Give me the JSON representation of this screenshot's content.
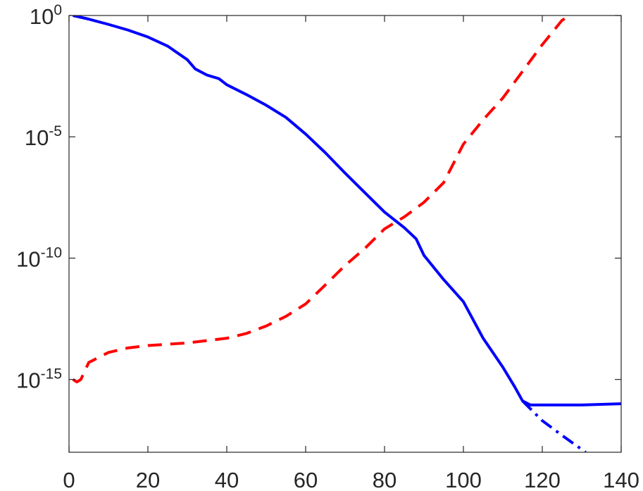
{
  "chart_data": {
    "type": "line",
    "title": "",
    "xlabel": "",
    "ylabel": "",
    "xlim": [
      0,
      140
    ],
    "ylim_log10": [
      -18,
      0
    ],
    "yscale": "log",
    "grid": false,
    "x_ticks": [
      0,
      20,
      40,
      60,
      80,
      100,
      120,
      140
    ],
    "x_tick_labels": [
      "0",
      "20",
      "40",
      "60",
      "80",
      "100",
      "120",
      "140"
    ],
    "y_ticks_log10": [
      0,
      -5,
      -10,
      -15
    ],
    "y_tick_labels": [
      {
        "base": "10",
        "exp": "0"
      },
      {
        "base": "10",
        "exp": "-5"
      },
      {
        "base": "10",
        "exp": "-10"
      },
      {
        "base": "10",
        "exp": "-15"
      }
    ],
    "series": [
      {
        "color": "#0000ff",
        "style": "solid",
        "points": [
          [
            1,
            1.0
          ],
          [
            5,
            0.71
          ],
          [
            10,
            0.43
          ],
          [
            15,
            0.25
          ],
          [
            20,
            0.13
          ],
          [
            25,
            0.055
          ],
          [
            30,
            0.015
          ],
          [
            32,
            0.0063
          ],
          [
            35,
            0.0035
          ],
          [
            38,
            0.0025
          ],
          [
            40,
            0.0014
          ],
          [
            45,
            0.00055
          ],
          [
            50,
            0.0002
          ],
          [
            55,
            6.3e-05
          ],
          [
            60,
            1.3e-05
          ],
          [
            65,
            2.2e-06
          ],
          [
            70,
            3.2e-07
          ],
          [
            75,
            5e-08
          ],
          [
            80,
            7.9e-09
          ],
          [
            85,
            1.8e-09
          ],
          [
            88,
            6.3e-10
          ],
          [
            90,
            1.3e-10
          ],
          [
            95,
            1.3e-11
          ],
          [
            100,
            1.6e-12
          ],
          [
            105,
            5e-14
          ],
          [
            110,
            3.2e-15
          ],
          [
            113,
            5e-16
          ],
          [
            115,
            1.3e-16
          ],
          [
            117,
            8.9e-17
          ],
          [
            120,
            8.9e-17
          ],
          [
            130,
            8.9e-17
          ],
          [
            140,
            1e-16
          ]
        ]
      },
      {
        "color": "#0000ff",
        "style": "dashdot",
        "points": [
          [
            115,
            1.3e-16
          ],
          [
            120,
            2e-17
          ],
          [
            125,
            5e-18
          ],
          [
            131,
            1e-18
          ]
        ]
      },
      {
        "color": "#ff0000",
        "style": "dashed",
        "points": [
          [
            1,
            1e-15
          ],
          [
            2,
            7.9e-16
          ],
          [
            3,
            1e-15
          ],
          [
            5,
            5e-15
          ],
          [
            10,
            1.3e-14
          ],
          [
            15,
            2e-14
          ],
          [
            20,
            2.5e-14
          ],
          [
            30,
            3.2e-14
          ],
          [
            35,
            4e-14
          ],
          [
            40,
            5e-14
          ],
          [
            45,
            7.9e-14
          ],
          [
            50,
            1.6e-13
          ],
          [
            55,
            4e-13
          ],
          [
            60,
            1.3e-12
          ],
          [
            65,
            7.9e-12
          ],
          [
            70,
            5e-11
          ],
          [
            75,
            2.5e-10
          ],
          [
            80,
            1.6e-09
          ],
          [
            85,
            5e-09
          ],
          [
            90,
            2e-08
          ],
          [
            95,
            1.3e-07
          ],
          [
            100,
            5e-06
          ],
          [
            105,
            5e-05
          ],
          [
            110,
            0.0004
          ],
          [
            115,
            0.005
          ],
          [
            120,
            0.063
          ],
          [
            125,
            0.63
          ],
          [
            127,
            1.0
          ]
        ]
      }
    ]
  }
}
